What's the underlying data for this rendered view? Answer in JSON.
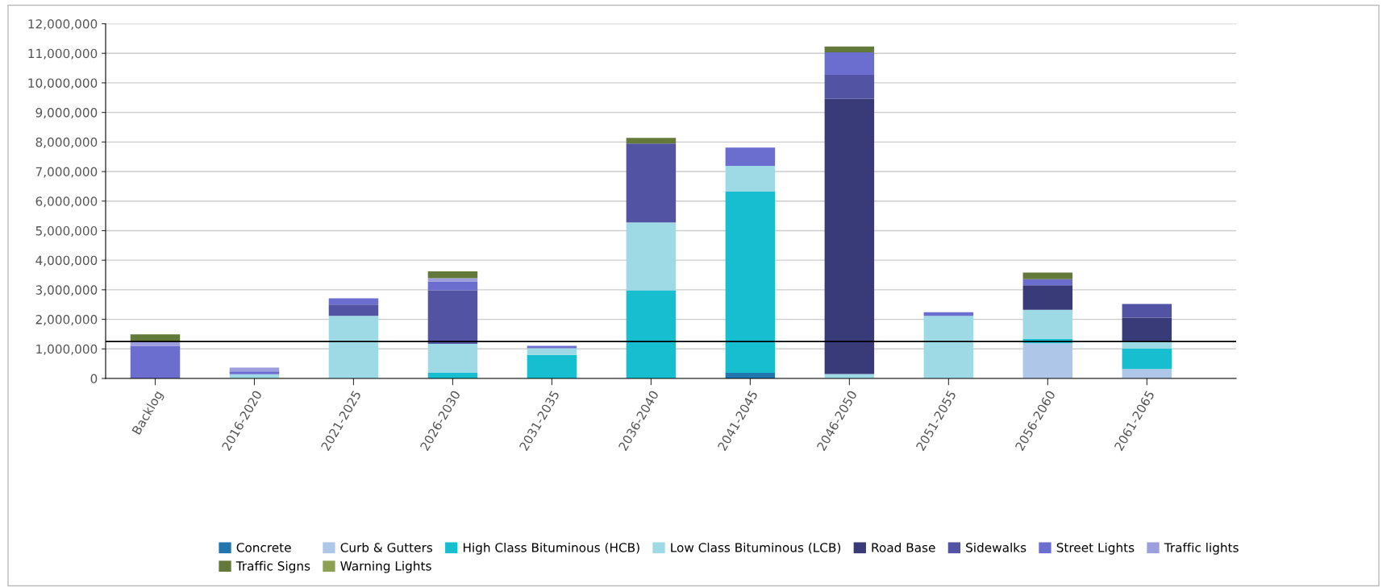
{
  "chart_data": {
    "type": "bar",
    "stacked": true,
    "categories": [
      "Backlog",
      "2016-2020",
      "2021-2025",
      "2026-2030",
      "2031-2035",
      "2036-2040",
      "2041-2045",
      "2046-2050",
      "2051-2055",
      "2056-2060",
      "2061-2065"
    ],
    "series": [
      {
        "name": "Concrete",
        "color": "#2176b0",
        "values": [
          0,
          0,
          0,
          0,
          0,
          0,
          190000,
          0,
          0,
          0,
          0
        ]
      },
      {
        "name": "Curb & Gutters",
        "color": "#aec7e8",
        "values": [
          0,
          0,
          0,
          0,
          0,
          0,
          0,
          0,
          0,
          1190000,
          320000
        ]
      },
      {
        "name": "High Class Bituminous (HCB)",
        "color": "#17becf",
        "values": [
          0,
          0,
          null,
          190000,
          800000,
          2980000,
          6130000,
          0,
          null,
          150000,
          690000
        ]
      },
      {
        "name": "Low Class Bituminous (LCB)",
        "color": "#9edae5",
        "values": [
          0,
          140000,
          2120000,
          980000,
          220000,
          2300000,
          870000,
          150000,
          2120000,
          980000,
          250000
        ]
      },
      {
        "name": "Road Base",
        "color": "#393b79",
        "values": [
          0,
          0,
          0,
          0,
          0,
          0,
          0,
          9310000,
          0,
          830000,
          800000
        ]
      },
      {
        "name": "Sidewalks",
        "color": "#5254a3",
        "values": [
          0,
          0,
          380000,
          1810000,
          0,
          2670000,
          0,
          810000,
          0,
          0,
          460000
        ]
      },
      {
        "name": "Street Lights",
        "color": "#6b6ecf",
        "values": [
          1100000,
          100000,
          210000,
          300000,
          80000,
          0,
          620000,
          760000,
          120000,
          210000,
          0
        ]
      },
      {
        "name": "Traffic lights",
        "color": "#9c9ede",
        "values": [
          150000,
          130000,
          0,
          110000,
          0,
          0,
          0,
          0,
          0,
          0,
          0
        ]
      },
      {
        "name": "Traffic Signs",
        "color": "#637939",
        "values": [
          240000,
          0,
          0,
          230000,
          0,
          190000,
          0,
          200000,
          0,
          220000,
          0
        ]
      },
      {
        "name": "Warning Lights",
        "color": "#8ca252",
        "values": [
          0,
          0,
          0,
          0,
          0,
          0,
          0,
          0,
          0,
          0,
          0
        ]
      }
    ],
    "ylim": [
      0,
      12000000
    ],
    "yticks": [
      {
        "value": 0,
        "label": "0"
      },
      {
        "value": 1000000,
        "label": "1,000,000"
      },
      {
        "value": 2000000,
        "label": "2,000,000"
      },
      {
        "value": 3000000,
        "label": "3,000,000"
      },
      {
        "value": 4000000,
        "label": "4,000,000"
      },
      {
        "value": 5000000,
        "label": "5,000,000"
      },
      {
        "value": 6000000,
        "label": "6,000,000"
      },
      {
        "value": 7000000,
        "label": "7,000,000"
      },
      {
        "value": 8000000,
        "label": "8,000,000"
      },
      {
        "value": 9000000,
        "label": "9,000,000"
      },
      {
        "value": 10000000,
        "label": "10,000,000"
      },
      {
        "value": 11000000,
        "label": "11,000,000"
      },
      {
        "value": 12000000,
        "label": "12,000,000"
      }
    ],
    "grid": "y",
    "legend": "bottom",
    "ref_lines": [
      {
        "axis": "y",
        "value": 1250000,
        "color": "#000000"
      }
    ]
  }
}
